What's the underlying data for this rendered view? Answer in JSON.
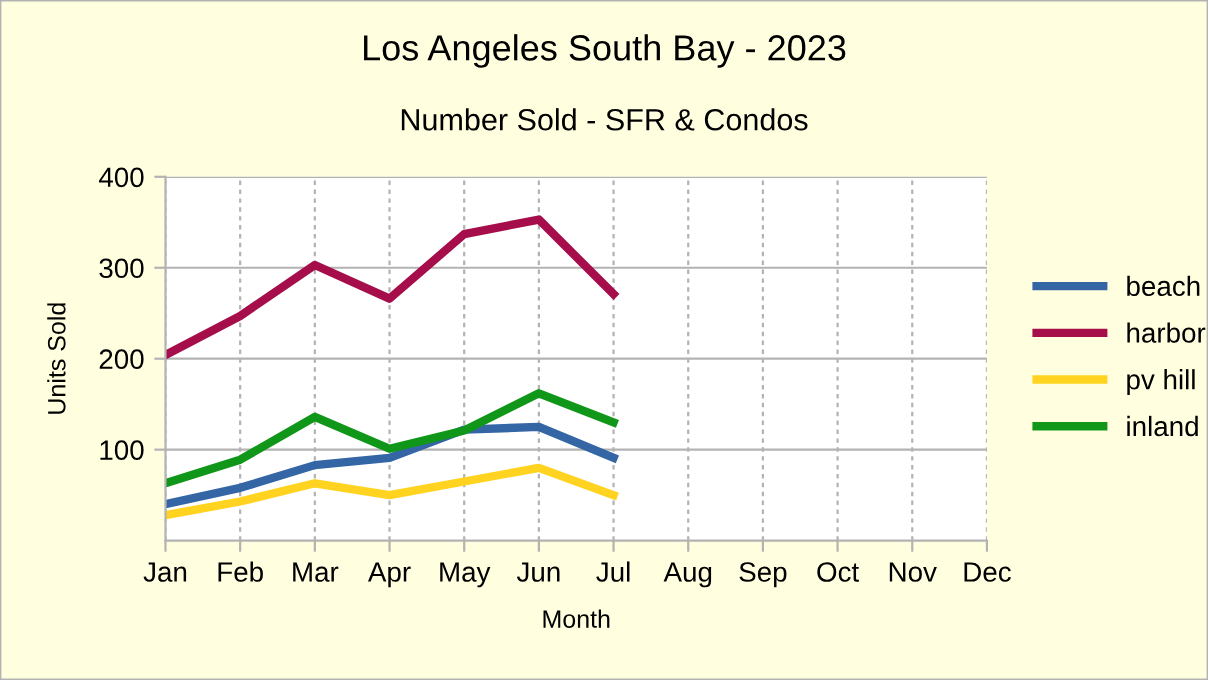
{
  "chart_data": {
    "type": "line",
    "title": "Los Angeles South Bay - 2023",
    "subtitle": "Number Sold - SFR & Condos",
    "xlabel": "Month",
    "ylabel": "Units Sold",
    "categories": [
      "Jan",
      "Feb",
      "Mar",
      "Apr",
      "May",
      "Jun",
      "Jul",
      "Aug",
      "Sep",
      "Oct",
      "Nov",
      "Dec"
    ],
    "series": [
      {
        "name": "beach",
        "color": "#3465a4",
        "values": [
          40,
          58,
          83,
          91,
          122,
          125,
          91,
          null,
          null,
          null,
          null,
          null
        ]
      },
      {
        "name": "harbor",
        "color": "#a50e4a",
        "values": [
          204,
          247,
          303,
          266,
          337,
          353,
          271,
          null,
          null,
          null,
          null,
          null
        ]
      },
      {
        "name": "pv hill",
        "color": "#ffd320",
        "values": [
          28,
          43,
          63,
          50,
          65,
          80,
          50,
          null,
          null,
          null,
          null,
          null
        ]
      },
      {
        "name": "inland",
        "color": "#109618",
        "values": [
          63,
          89,
          136,
          101,
          121,
          162,
          130,
          null,
          null,
          null,
          null,
          null
        ]
      }
    ],
    "ylim": [
      0,
      400
    ],
    "yticks": [
      100,
      200,
      300,
      400
    ],
    "grid": true,
    "legend": "right",
    "marker": "none",
    "line_style": "solid"
  }
}
